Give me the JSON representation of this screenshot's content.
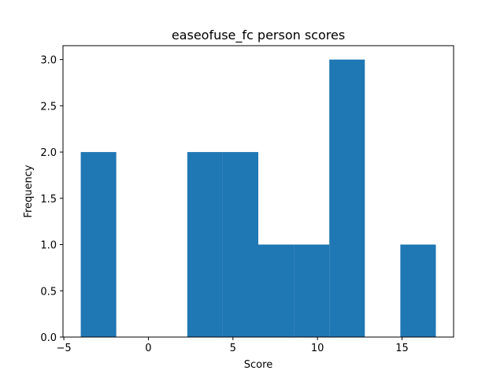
{
  "chart_data": {
    "type": "bar",
    "title": "easeofuse_fc person scores",
    "xlabel": "Score",
    "ylabel": "Frequency",
    "xlim": [
      -5.05,
      18.05
    ],
    "ylim": [
      0,
      3.15
    ],
    "xticks": [
      -5,
      0,
      5,
      10,
      15
    ],
    "xtick_labels": [
      "−5",
      "0",
      "5",
      "10",
      "15"
    ],
    "yticks": [
      0,
      0.5,
      1.0,
      1.5,
      2.0,
      2.5,
      3.0
    ],
    "ytick_labels": [
      "0.0",
      "0.5",
      "1.0",
      "1.5",
      "2.0",
      "2.5",
      "3.0"
    ],
    "bins": [
      {
        "start": -4.0,
        "end": -1.9,
        "count": 2
      },
      {
        "start": -1.9,
        "end": 0.2,
        "count": 0
      },
      {
        "start": 0.2,
        "end": 2.3,
        "count": 0
      },
      {
        "start": 2.3,
        "end": 4.4,
        "count": 2
      },
      {
        "start": 4.4,
        "end": 6.5,
        "count": 2
      },
      {
        "start": 6.5,
        "end": 8.6,
        "count": 1
      },
      {
        "start": 8.6,
        "end": 10.7,
        "count": 1
      },
      {
        "start": 10.7,
        "end": 12.8,
        "count": 3
      },
      {
        "start": 12.8,
        "end": 14.9,
        "count": 0
      },
      {
        "start": 14.9,
        "end": 17.0,
        "count": 1
      }
    ],
    "bar_color": "#1f77b4",
    "grid": false,
    "legend": "none"
  }
}
